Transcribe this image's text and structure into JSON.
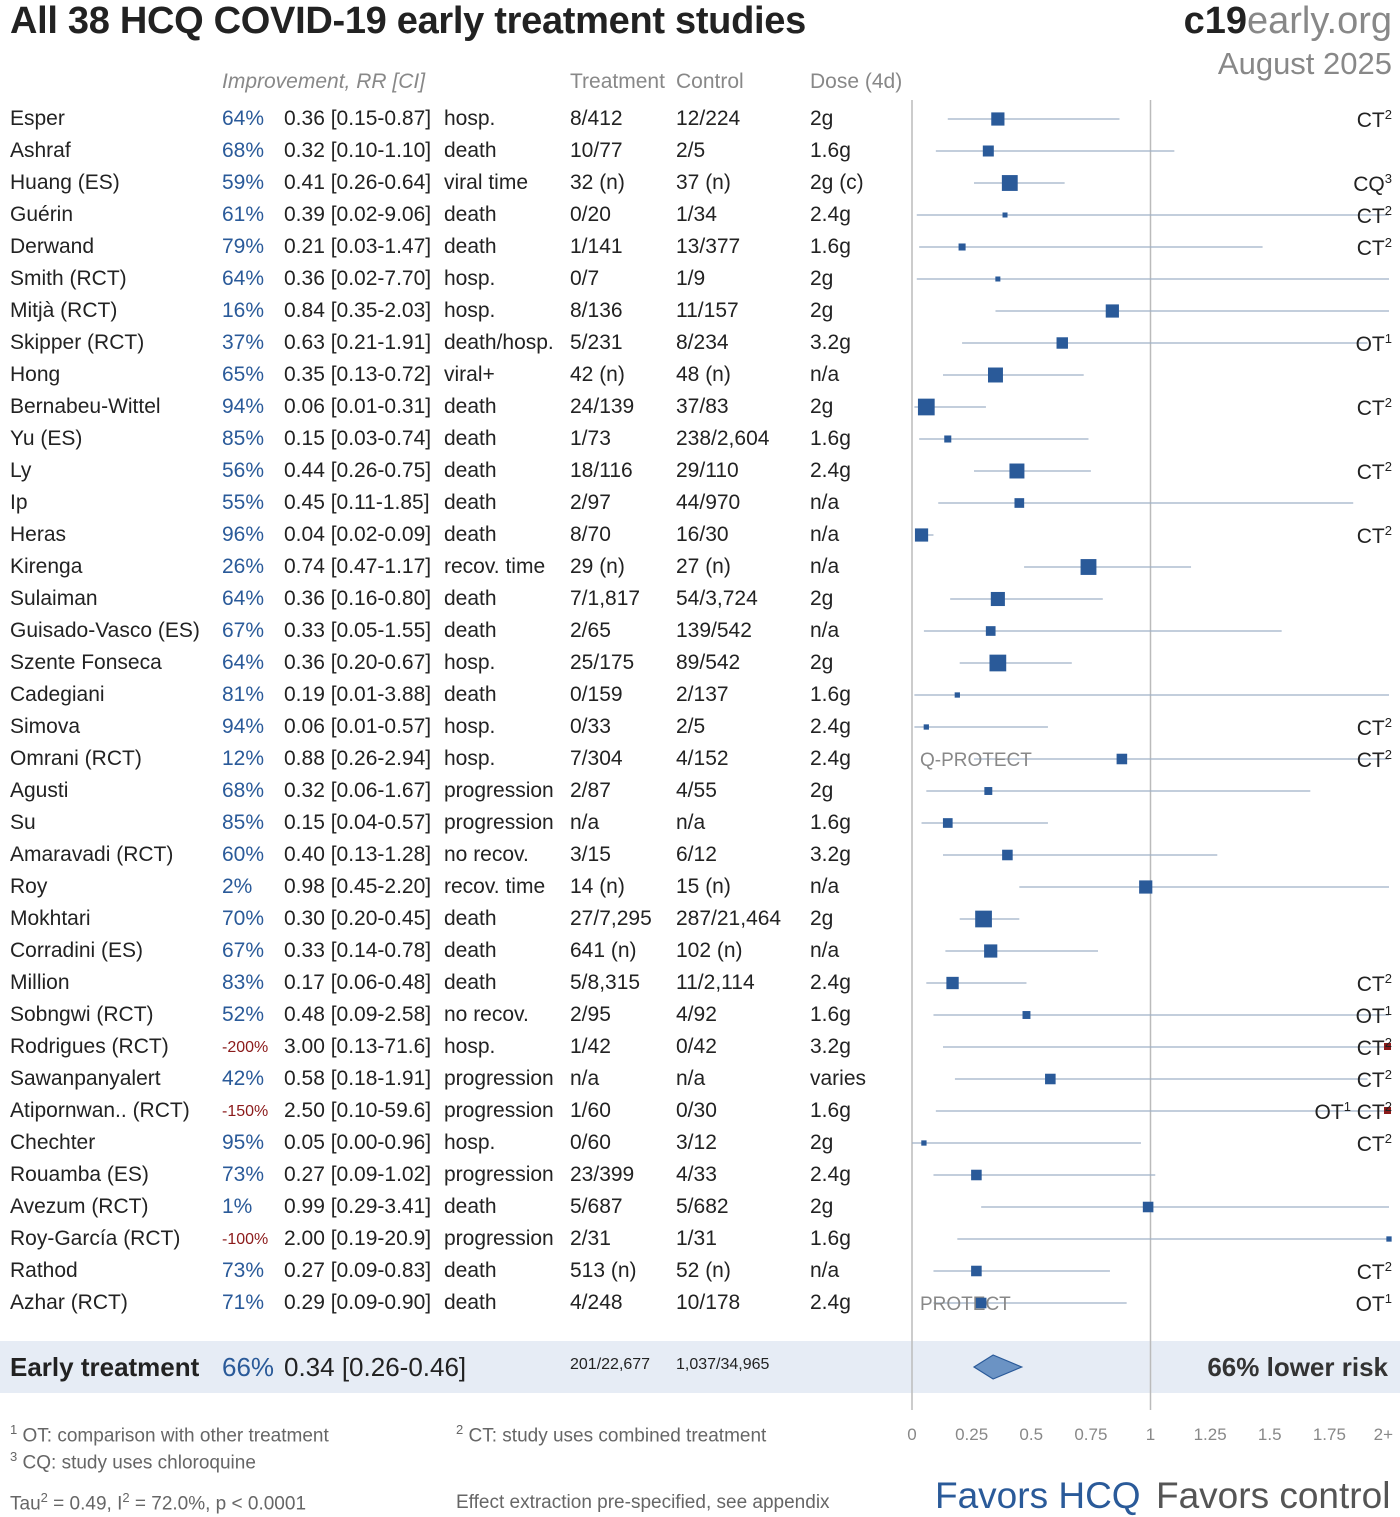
{
  "title": "All 38 HCQ COVID-19 early treatment studies",
  "logo": {
    "bold": "c19",
    "rest": "early.org"
  },
  "date": "August 2025",
  "headers": {
    "improvement": "Improvement, RR [CI]",
    "treatment": "Treatment",
    "control": "Control",
    "dose": "Dose (4d)"
  },
  "summary": {
    "label": "Early treatment",
    "improvement": "66%",
    "rr_text": "0.34 [0.26-0.46]",
    "treatment": "201/22,677",
    "control": "1,037/34,965",
    "risk_text": "66% lower risk"
  },
  "footnotes": {
    "ot": "OT: comparison with other treatment",
    "ot_num": "1",
    "ct": "CT: study uses combined treatment",
    "ct_num": "2",
    "cq": "CQ: study uses chloroquine",
    "cq_num": "3",
    "stats_tau": "Tau",
    "stats_rest_a": " = 0.49, I",
    "stats_rest_b": " = 72.0%, p < 0.0001",
    "stats_sup": "2",
    "extraction": "Effect extraction pre-specified, see appendix"
  },
  "favors": {
    "left": "Favors HCQ",
    "right": "Favors control"
  },
  "chart_data": {
    "type": "forest",
    "x_ticks": [
      "0",
      "0.25",
      "0.5",
      "0.75",
      "1",
      "1.25",
      "1.5",
      "1.75",
      "2+"
    ],
    "xlim": [
      0,
      2
    ],
    "reference_line": 1,
    "summary_estimate": {
      "rr": 0.34,
      "lo": 0.26,
      "hi": 0.46
    },
    "studies": [
      {
        "name": "Esper",
        "imp": "64%",
        "rr_text": "0.36 [0.15-0.87]",
        "outcome": "hosp.",
        "treatment": "8/412",
        "control": "12/224",
        "dose": "2g",
        "note": "CT",
        "note_sup": "2",
        "rr": 0.36,
        "lo": 0.15,
        "hi": 0.87,
        "w": 3
      },
      {
        "name": "Ashraf",
        "imp": "68%",
        "rr_text": "0.32 [0.10-1.10]",
        "outcome": "death",
        "treatment": "10/77",
        "control": "2/5",
        "dose": "1.6g",
        "note": "",
        "note_sup": "",
        "rr": 0.32,
        "lo": 0.1,
        "hi": 1.1,
        "w": 2.5
      },
      {
        "name": "Huang (ES)",
        "imp": "59%",
        "rr_text": "0.41 [0.26-0.64]",
        "outcome": "viral time",
        "treatment": "32 (n)",
        "control": "37 (n)",
        "dose": "2g (c)",
        "note": "CQ",
        "note_sup": "3",
        "rr": 0.41,
        "lo": 0.26,
        "hi": 0.64,
        "w": 3.6
      },
      {
        "name": "Guérin",
        "imp": "61%",
        "rr_text": "0.39 [0.02-9.06]",
        "outcome": "death",
        "treatment": "0/20",
        "control": "1/34",
        "dose": "2.4g",
        "note": "CT",
        "note_sup": "2",
        "rr": 0.39,
        "lo": 0.02,
        "hi": 9.06,
        "w": 1
      },
      {
        "name": "Derwand",
        "imp": "79%",
        "rr_text": "0.21 [0.03-1.47]",
        "outcome": "death",
        "treatment": "1/141",
        "control": "13/377",
        "dose": "1.6g",
        "note": "CT",
        "note_sup": "2",
        "rr": 0.21,
        "lo": 0.03,
        "hi": 1.47,
        "w": 1.6
      },
      {
        "name": "Smith (RCT)",
        "imp": "64%",
        "rr_text": "0.36 [0.02-7.70]",
        "outcome": "hosp.",
        "treatment": "0/7",
        "control": "1/9",
        "dose": "2g",
        "note": "",
        "note_sup": "",
        "rr": 0.36,
        "lo": 0.02,
        "hi": 7.7,
        "w": 1
      },
      {
        "name": "Mitjà (RCT)",
        "imp": "16%",
        "rr_text": "0.84 [0.35-2.03]",
        "outcome": "hosp.",
        "treatment": "8/136",
        "control": "11/157",
        "dose": "2g",
        "note": "",
        "note_sup": "",
        "rr": 0.84,
        "lo": 0.35,
        "hi": 2.03,
        "w": 3
      },
      {
        "name": "Skipper (RCT)",
        "imp": "37%",
        "rr_text": "0.63 [0.21-1.91]",
        "outcome": "death/hosp.",
        "treatment": "5/231",
        "control": "8/234",
        "dose": "3.2g",
        "note": "OT",
        "note_sup": "1",
        "rr": 0.63,
        "lo": 0.21,
        "hi": 1.91,
        "w": 2.6
      },
      {
        "name": "Hong",
        "imp": "65%",
        "rr_text": "0.35 [0.13-0.72]",
        "outcome": "viral+",
        "treatment": "42 (n)",
        "control": "48 (n)",
        "dose": "n/a",
        "note": "",
        "note_sup": "",
        "rr": 0.35,
        "lo": 0.13,
        "hi": 0.72,
        "w": 3.4
      },
      {
        "name": "Bernabeu-Wittel",
        "imp": "94%",
        "rr_text": "0.06 [0.01-0.31]",
        "outcome": "death",
        "treatment": "24/139",
        "control": "37/83",
        "dose": "2g",
        "note": "CT",
        "note_sup": "2",
        "rr": 0.06,
        "lo": 0.01,
        "hi": 0.31,
        "w": 3.8
      },
      {
        "name": "Yu (ES)",
        "imp": "85%",
        "rr_text": "0.15 [0.03-0.74]",
        "outcome": "death",
        "treatment": "1/73",
        "control": "238/2,604",
        "dose": "1.6g",
        "note": "",
        "note_sup": "",
        "rr": 0.15,
        "lo": 0.03,
        "hi": 0.74,
        "w": 1.6
      },
      {
        "name": "Ly",
        "imp": "56%",
        "rr_text": "0.44 [0.26-0.75]",
        "outcome": "death",
        "treatment": "18/116",
        "control": "29/110",
        "dose": "2.4g",
        "note": "CT",
        "note_sup": "2",
        "rr": 0.44,
        "lo": 0.26,
        "hi": 0.75,
        "w": 3.4
      },
      {
        "name": "Ip",
        "imp": "55%",
        "rr_text": "0.45 [0.11-1.85]",
        "outcome": "death",
        "treatment": "2/97",
        "control": "44/970",
        "dose": "n/a",
        "note": "",
        "note_sup": "",
        "rr": 0.45,
        "lo": 0.11,
        "hi": 1.85,
        "w": 2.2
      },
      {
        "name": "Heras",
        "imp": "96%",
        "rr_text": "0.04 [0.02-0.09]",
        "outcome": "death",
        "treatment": "8/70",
        "control": "16/30",
        "dose": "n/a",
        "note": "CT",
        "note_sup": "2",
        "rr": 0.04,
        "lo": 0.02,
        "hi": 0.09,
        "w": 3
      },
      {
        "name": "Kirenga",
        "imp": "26%",
        "rr_text": "0.74 [0.47-1.17]",
        "outcome": "recov. time",
        "treatment": "29 (n)",
        "control": "27 (n)",
        "dose": "n/a",
        "note": "",
        "note_sup": "",
        "rr": 0.74,
        "lo": 0.47,
        "hi": 1.17,
        "w": 3.6
      },
      {
        "name": "Sulaiman",
        "imp": "64%",
        "rr_text": "0.36 [0.16-0.80]",
        "outcome": "death",
        "treatment": "7/1,817",
        "control": "54/3,724",
        "dose": "2g",
        "note": "",
        "note_sup": "",
        "rr": 0.36,
        "lo": 0.16,
        "hi": 0.8,
        "w": 3.2
      },
      {
        "name": "Guisado-Vasco (ES)",
        "imp": "67%",
        "rr_text": "0.33 [0.05-1.55]",
        "outcome": "death",
        "treatment": "2/65",
        "control": "139/542",
        "dose": "n/a",
        "note": "",
        "note_sup": "",
        "rr": 0.33,
        "lo": 0.05,
        "hi": 1.55,
        "w": 2.2
      },
      {
        "name": "Szente Fonseca",
        "imp": "64%",
        "rr_text": "0.36 [0.20-0.67]",
        "outcome": "hosp.",
        "treatment": "25/175",
        "control": "89/542",
        "dose": "2g",
        "note": "",
        "note_sup": "",
        "rr": 0.36,
        "lo": 0.2,
        "hi": 0.67,
        "w": 3.8
      },
      {
        "name": "Cadegiani",
        "imp": "81%",
        "rr_text": "0.19 [0.01-3.88]",
        "outcome": "death",
        "treatment": "0/159",
        "control": "2/137",
        "dose": "1.6g",
        "note": "",
        "note_sup": "",
        "rr": 0.19,
        "lo": 0.01,
        "hi": 3.88,
        "w": 1.2
      },
      {
        "name": "Simova",
        "imp": "94%",
        "rr_text": "0.06 [0.01-0.57]",
        "outcome": "hosp.",
        "treatment": "0/33",
        "control": "2/5",
        "dose": "2.4g",
        "note": "CT",
        "note_sup": "2",
        "rr": 0.06,
        "lo": 0.01,
        "hi": 0.57,
        "w": 1.2
      },
      {
        "name": "Omrani (RCT)",
        "imp": "12%",
        "rr_text": "0.88 [0.26-2.94]",
        "outcome": "hosp.",
        "treatment": "7/304",
        "control": "4/152",
        "dose": "2.4g",
        "note": "CT",
        "note_sup": "2",
        "rr": 0.88,
        "lo": 0.26,
        "hi": 2.94,
        "w": 2.4,
        "tag": "Q-PROTECT"
      },
      {
        "name": "Agusti",
        "imp": "68%",
        "rr_text": "0.32 [0.06-1.67]",
        "outcome": "progression",
        "treatment": "2/87",
        "control": "4/55",
        "dose": "2g",
        "note": "",
        "note_sup": "",
        "rr": 0.32,
        "lo": 0.06,
        "hi": 1.67,
        "w": 1.8
      },
      {
        "name": "Su",
        "imp": "85%",
        "rr_text": "0.15 [0.04-0.57]",
        "outcome": "progression",
        "treatment": "n/a",
        "control": "n/a",
        "dose": "1.6g",
        "note": "",
        "note_sup": "",
        "rr": 0.15,
        "lo": 0.04,
        "hi": 0.57,
        "w": 2.2
      },
      {
        "name": "Amaravadi (RCT)",
        "imp": "60%",
        "rr_text": "0.40 [0.13-1.28]",
        "outcome": "no recov.",
        "treatment": "3/15",
        "control": "6/12",
        "dose": "3.2g",
        "note": "",
        "note_sup": "",
        "rr": 0.4,
        "lo": 0.13,
        "hi": 1.28,
        "w": 2.4
      },
      {
        "name": "Roy",
        "imp": "2%",
        "rr_text": "0.98 [0.45-2.20]",
        "outcome": "recov. time",
        "treatment": "14 (n)",
        "control": "15 (n)",
        "dose": "n/a",
        "note": "",
        "note_sup": "",
        "rr": 0.98,
        "lo": 0.45,
        "hi": 2.2,
        "w": 3
      },
      {
        "name": "Mokhtari",
        "imp": "70%",
        "rr_text": "0.30 [0.20-0.45]",
        "outcome": "death",
        "treatment": "27/7,295",
        "control": "287/21,464",
        "dose": "2g",
        "note": "",
        "note_sup": "",
        "rr": 0.3,
        "lo": 0.2,
        "hi": 0.45,
        "w": 3.8
      },
      {
        "name": "Corradini (ES)",
        "imp": "67%",
        "rr_text": "0.33 [0.14-0.78]",
        "outcome": "death",
        "treatment": "641 (n)",
        "control": "102 (n)",
        "dose": "n/a",
        "note": "",
        "note_sup": "",
        "rr": 0.33,
        "lo": 0.14,
        "hi": 0.78,
        "w": 3
      },
      {
        "name": "Million",
        "imp": "83%",
        "rr_text": "0.17 [0.06-0.48]",
        "outcome": "death",
        "treatment": "5/8,315",
        "control": "11/2,114",
        "dose": "2.4g",
        "note": "CT",
        "note_sup": "2",
        "rr": 0.17,
        "lo": 0.06,
        "hi": 0.48,
        "w": 2.8
      },
      {
        "name": "Sobngwi (RCT)",
        "imp": "52%",
        "rr_text": "0.48 [0.09-2.58]",
        "outcome": "no recov.",
        "treatment": "2/95",
        "control": "4/92",
        "dose": "1.6g",
        "note": "OT",
        "note_sup": "1",
        "rr": 0.48,
        "lo": 0.09,
        "hi": 2.58,
        "w": 1.8
      },
      {
        "name": "Rodrigues (RCT)",
        "imp": "-200%",
        "rr_text": "3.00 [0.13-71.6]",
        "outcome": "hosp.",
        "treatment": "1/42",
        "control": "0/42",
        "dose": "3.2g",
        "note": "CT",
        "note_sup": "2",
        "rr": 3.0,
        "lo": 0.13,
        "hi": 71.6,
        "w": 1.2
      },
      {
        "name": "Sawanpanyalert",
        "imp": "42%",
        "rr_text": "0.58 [0.18-1.91]",
        "outcome": "progression",
        "treatment": "n/a",
        "control": "n/a",
        "dose": "varies",
        "note": "CT",
        "note_sup": "2",
        "rr": 0.58,
        "lo": 0.18,
        "hi": 1.91,
        "w": 2.4
      },
      {
        "name": "Atipornwan.. (RCT)",
        "imp": "-150%",
        "rr_text": "2.50 [0.10-59.6]",
        "outcome": "progression",
        "treatment": "1/60",
        "control": "0/30",
        "dose": "1.6g",
        "note": "OT",
        "note_sup": "1",
        "note2": "CT",
        "note2_sup": "2",
        "rr": 2.5,
        "lo": 0.1,
        "hi": 59.6,
        "w": 1.2
      },
      {
        "name": "Chechter",
        "imp": "95%",
        "rr_text": "0.05 [0.00-0.96]",
        "outcome": "hosp.",
        "treatment": "0/60",
        "control": "3/12",
        "dose": "2g",
        "note": "CT",
        "note_sup": "2",
        "rr": 0.05,
        "lo": 0.0,
        "hi": 0.96,
        "w": 1.2
      },
      {
        "name": "Rouamba (ES)",
        "imp": "73%",
        "rr_text": "0.27 [0.09-1.02]",
        "outcome": "progression",
        "treatment": "23/399",
        "control": "4/33",
        "dose": "2.4g",
        "note": "",
        "note_sup": "",
        "rr": 0.27,
        "lo": 0.09,
        "hi": 1.02,
        "w": 2.4
      },
      {
        "name": "Avezum (RCT)",
        "imp": "1%",
        "rr_text": "0.99 [0.29-3.41]",
        "outcome": "death",
        "treatment": "5/687",
        "control": "5/682",
        "dose": "2g",
        "note": "",
        "note_sup": "",
        "rr": 0.99,
        "lo": 0.29,
        "hi": 3.41,
        "w": 2.4
      },
      {
        "name": "Roy-García (RCT)",
        "imp": "-100%",
        "rr_text": "2.00 [0.19-20.9]",
        "outcome": "progression",
        "treatment": "2/31",
        "control": "1/31",
        "dose": "1.6g",
        "note": "",
        "note_sup": "",
        "rr": 2.0,
        "lo": 0.19,
        "hi": 20.9,
        "w": 1.2
      },
      {
        "name": "Rathod",
        "imp": "73%",
        "rr_text": "0.27 [0.09-0.83]",
        "outcome": "death",
        "treatment": "513 (n)",
        "control": "52 (n)",
        "dose": "n/a",
        "note": "CT",
        "note_sup": "2",
        "rr": 0.27,
        "lo": 0.09,
        "hi": 0.83,
        "w": 2.4
      },
      {
        "name": "Azhar (RCT)",
        "imp": "71%",
        "rr_text": "0.29 [0.09-0.90]",
        "outcome": "death",
        "treatment": "4/248",
        "control": "10/178",
        "dose": "2.4g",
        "note": "OT",
        "note_sup": "1",
        "rr": 0.29,
        "lo": 0.09,
        "hi": 0.9,
        "w": 2.4,
        "tag": "PROTECT"
      }
    ],
    "colors": {
      "marker": "#2a5a99",
      "ci_line": "#9fb1c6",
      "off_scale": "#8b1a1a",
      "axis": "#bbbbbb",
      "band": "#e6ecf5",
      "diamond_fill": "#6b93c4",
      "diamond_stroke": "#2a5a99"
    }
  }
}
